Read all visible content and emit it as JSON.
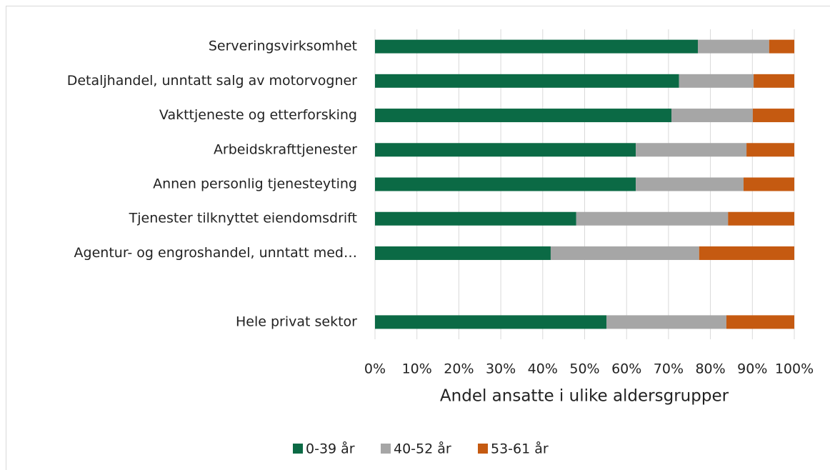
{
  "chart_data": {
    "type": "stacked_bar_horizontal",
    "categories": [
      "Serveringsvirksomhet",
      "Detaljhandel, unntatt salg av motorvogner",
      "Vakttjeneste og etterforsking",
      "Arbeidskrafttjenester",
      "Annen personlig tjenesteyting",
      "Tjenester tilknyttet eiendomsdrift",
      "Agentur- og engroshandel, unntatt med…",
      null,
      "Hele privat sektor"
    ],
    "series": [
      {
        "name": "0-39 år",
        "color": "#0b6a45",
        "values": [
          77,
          72.5,
          70.7,
          62.2,
          62.2,
          48,
          41.9,
          null,
          55.2
        ]
      },
      {
        "name": "40-52 år",
        "color": "#a6a6a6",
        "values": [
          17,
          17.8,
          19.4,
          26.4,
          25.7,
          36.2,
          35.4,
          null,
          28.6
        ]
      },
      {
        "name": "53-61 år",
        "color": "#c55a11",
        "values": [
          6,
          9.7,
          9.9,
          11.4,
          12.1,
          15.8,
          22.7,
          null,
          16.2
        ]
      }
    ],
    "xlabel": "Andel ansatte i ulike aldersgrupper",
    "xlim": [
      0,
      100
    ],
    "xticks": [
      {
        "value": 0,
        "label": "0%"
      },
      {
        "value": 10,
        "label": "10%"
      },
      {
        "value": 20,
        "label": "20%"
      },
      {
        "value": 30,
        "label": "30%"
      },
      {
        "value": 40,
        "label": "40%"
      },
      {
        "value": 50,
        "label": "50%"
      },
      {
        "value": 60,
        "label": "60%"
      },
      {
        "value": 70,
        "label": "70%"
      },
      {
        "value": 80,
        "label": "80%"
      },
      {
        "value": 90,
        "label": "90%"
      },
      {
        "value": 100,
        "label": "100%"
      }
    ],
    "grid": true,
    "legend": "bottom"
  }
}
